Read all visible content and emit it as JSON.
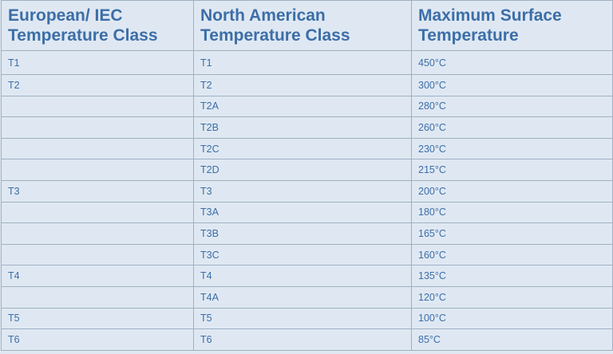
{
  "table": {
    "header": [
      "European/ IEC Temperature Class",
      "North American Temperature Class",
      "Maximum Surface Temperature"
    ],
    "rows": [
      [
        "T1",
        "T1",
        "450°C"
      ],
      [
        "T2",
        "T2",
        "300°C"
      ],
      [
        null,
        "T2A",
        "280°C"
      ],
      [
        null,
        "T2B",
        "260°C"
      ],
      [
        null,
        "T2C",
        "230°C"
      ],
      [
        null,
        "T2D",
        "215°C"
      ],
      [
        "T3",
        "T3",
        "200°C"
      ],
      [
        null,
        "T3A",
        "180°C"
      ],
      [
        null,
        "T3B",
        "165°C"
      ],
      [
        null,
        "T3C",
        "160°C"
      ],
      [
        "T4",
        "T4",
        "135°C"
      ],
      [
        null,
        "T4A",
        "120°C"
      ],
      [
        "T5",
        "T5",
        "100°C"
      ],
      [
        "T6",
        "T6",
        "85°C"
      ]
    ]
  }
}
